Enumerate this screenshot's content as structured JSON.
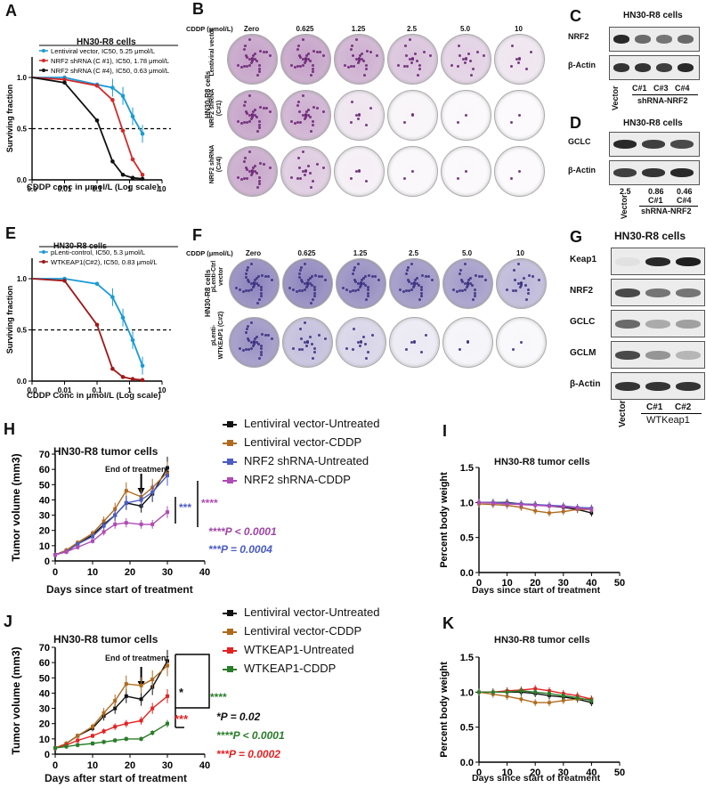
{
  "panels": {
    "A": {
      "label": "A",
      "legend_title": "HN30-R8 cells",
      "xlabel": "CDDP conc in μmol/L (Log scale)",
      "ylabel": "Surviving fraction",
      "series": [
        {
          "name": "Lentiviral vector, IC50, 5.25 μmol/L",
          "color": "#1a9bd7",
          "ic50": 5.25
        },
        {
          "name": "NRF2 shRNA (C #1), IC50, 1.78 μmol/L",
          "color": "#d42a2a",
          "ic50": 1.78
        },
        {
          "name": "NRF2 shRNA (C #4), IC50, 0.63 μmol/L",
          "color": "#111111",
          "ic50": 0.63
        }
      ],
      "xticks": [
        "0.0",
        "0.01",
        "0.1",
        "1",
        "10"
      ],
      "yticks": [
        "0.0",
        "0.5",
        "1.0"
      ]
    },
    "B": {
      "label": "B",
      "conc_title": "CDDP (μmol/L)",
      "conc": [
        "Zero",
        "0.625",
        "1.25",
        "2.5",
        "5.0",
        "10"
      ],
      "side": "HN30-R8 cells",
      "rows": [
        "Lentiviral vector",
        "NRF2 shRNA (C#1)",
        "NRF2 shRNA (C#4)"
      ]
    },
    "C": {
      "label": "C",
      "title": "HN30-R8 cells",
      "proteins": [
        "NRF2",
        "β-Actin"
      ],
      "lanes": [
        "Vector",
        "C#1",
        "C#3",
        "C#4"
      ],
      "group": "shRNA-NRF2"
    },
    "D": {
      "label": "D",
      "title": "HN30-R8 cells",
      "proteins": [
        "GCLC",
        "β-Actin"
      ],
      "values": [
        "2.5",
        "0.86",
        "0.46"
      ],
      "lanes": [
        "Vector",
        "C#1",
        "C#4"
      ],
      "group": "shRNA-NRF2"
    },
    "E": {
      "label": "E",
      "legend_title": "HN30-R8 cells",
      "xlabel": "CDDP Conc in μmol/L (Log scale)",
      "ylabel": "Surviving fraction",
      "series": [
        {
          "name": "pLenti-control, IC50, 5.3 μmol/L",
          "color": "#1a9bd7",
          "ic50": 5.3
        },
        {
          "name": "WTKEAP1(C#2), IC50, 0.83 μmol/L",
          "color": "#a01818",
          "ic50": 0.83
        }
      ],
      "xticks": [
        "0.0",
        "0.01",
        "0.1",
        "1",
        "10"
      ],
      "yticks": [
        "0.0",
        "0.5",
        "1.0"
      ]
    },
    "F": {
      "label": "F",
      "conc_title": "CDDP (μmol/L)",
      "conc": [
        "Zero",
        "0.625",
        "1.25",
        "2.5",
        "5.0",
        "10"
      ],
      "side": "HN30-R8 cells",
      "rows": [
        "pLenti-Ctrl vector",
        "pLenti-WTKEAP1 (C#2)"
      ]
    },
    "G": {
      "label": "G",
      "title": "HN30-R8 cells",
      "proteins": [
        "Keap1",
        "NRF2",
        "GCLC",
        "GCLM",
        "β-Actin"
      ],
      "lanes": [
        "Vector",
        "C#1",
        "C#2"
      ],
      "group": "WTKeap1"
    },
    "H": {
      "label": "H",
      "title": "HN30-R8 tumor cells",
      "annotation": "End of treatment",
      "xlabel": "Days since start of treatment",
      "ylabel": "Tumor volume (mm3)",
      "legend": [
        "Lentiviral vector-Untreated",
        "Lentiviral vector-CDDP",
        "NRF2 shRNA-Untreated",
        "NRF2 shRNA-CDDP"
      ],
      "sig1": "***",
      "sig2": "****",
      "p1": "****P < 0.0001",
      "p2": "***P = 0.0004"
    },
    "I": {
      "label": "I",
      "title": "HN30-R8 tumor cells",
      "xlabel": "Days since start of treatment",
      "ylabel": "Percent body weight"
    },
    "J": {
      "label": "J",
      "title": "HN30-R8 tumor cells",
      "annotation": "End of treatment",
      "xlabel": "Days after start of treatment",
      "ylabel": "Tumor volume (mm3)",
      "legend": [
        "Lentiviral vector-Untreated",
        "Lentiviral vector-CDDP",
        "WTKEAP1-Untreated",
        "WTKEAP1-CDDP"
      ],
      "sig1": "*",
      "sig2": "****",
      "sig3": "***",
      "p1": "*P = 0.02",
      "p2": "****P < 0.0001",
      "p3": "***P = 0.0002"
    },
    "K": {
      "label": "K",
      "title": "HN30-R8 tumor cells",
      "xlabel": "Days since start of treatment",
      "ylabel": "Percent body weight"
    }
  },
  "chart_data": [
    {
      "panel": "A",
      "type": "line",
      "title": "HN30-R8 cells",
      "xlabel": "CDDP conc in μmol/L (Log scale)",
      "ylabel": "Surviving fraction",
      "xscale": "log",
      "ylim": [
        0,
        1.2
      ],
      "x": [
        0.001,
        0.01,
        0.1,
        0.3,
        0.625,
        1.25,
        2.5
      ],
      "series": [
        {
          "name": "Lentiviral vector, IC50, 5.25 μmol/L",
          "values": [
            1.0,
            1.0,
            0.93,
            0.9,
            0.82,
            0.62,
            0.45
          ]
        },
        {
          "name": "NRF2 shRNA (C #1), IC50, 1.78 μmol/L",
          "values": [
            1.0,
            0.98,
            0.92,
            0.78,
            0.48,
            0.2,
            0.05
          ]
        },
        {
          "name": "NRF2 shRNA (C #4), IC50, 0.63 μmol/L",
          "values": [
            1.0,
            0.95,
            0.58,
            0.18,
            0.05,
            0.02,
            0.01
          ]
        }
      ]
    },
    {
      "panel": "E",
      "type": "line",
      "title": "HN30-R8 cells",
      "xlabel": "CDDP Conc in μmol/L (Log scale)",
      "ylabel": "Surviving fraction",
      "xscale": "log",
      "ylim": [
        0,
        1.2
      ],
      "x": [
        0.001,
        0.01,
        0.1,
        0.3,
        0.625,
        1.25,
        2.5
      ],
      "series": [
        {
          "name": "pLenti-control, IC50, 5.3 μmol/L",
          "values": [
            1.0,
            1.0,
            0.95,
            0.82,
            0.62,
            0.4,
            0.15
          ]
        },
        {
          "name": "WTKEAP1(C#2), IC50, 0.83 μmol/L",
          "values": [
            1.0,
            0.98,
            0.55,
            0.12,
            0.04,
            0.02,
            0.01
          ]
        }
      ]
    },
    {
      "panel": "H",
      "type": "line",
      "title": "HN30-R8 tumor cells",
      "xlabel": "Days since start of treatment",
      "ylabel": "Tumor volume (mm3)",
      "xlim": [
        0,
        40
      ],
      "ylim": [
        0,
        70
      ],
      "x": [
        0,
        3,
        6,
        10,
        13,
        16,
        19,
        23,
        26,
        30
      ],
      "series": [
        {
          "name": "Lentiviral vector-Untreated",
          "values": [
            4,
            7,
            11,
            17,
            24,
            30,
            38,
            36,
            44,
            61
          ]
        },
        {
          "name": "Lentiviral vector-CDDP",
          "values": [
            4,
            7,
            12,
            18,
            26,
            34,
            46,
            42,
            48,
            58
          ]
        },
        {
          "name": "NRF2 shRNA-Untreated",
          "values": [
            4,
            6,
            11,
            16,
            23,
            30,
            38,
            40,
            45,
            56
          ]
        },
        {
          "name": "NRF2 shRNA-CDDP",
          "values": [
            4,
            6,
            9,
            13,
            19,
            24,
            25,
            24,
            24,
            32
          ]
        }
      ]
    },
    {
      "panel": "I",
      "type": "line",
      "title": "HN30-R8 tumor cells",
      "xlabel": "Days since start of treatment",
      "ylabel": "Percent body weight",
      "xlim": [
        0,
        50
      ],
      "ylim": [
        0,
        1.5
      ],
      "x": [
        0,
        5,
        10,
        15,
        20,
        25,
        30,
        35,
        40
      ],
      "series": [
        {
          "name": "Lentiviral vector-Untreated",
          "values": [
            1.0,
            1.0,
            1.0,
            0.98,
            0.97,
            0.95,
            0.93,
            0.9,
            0.85
          ]
        },
        {
          "name": "Lentiviral vector-CDDP",
          "values": [
            0.98,
            0.97,
            0.96,
            0.93,
            0.88,
            0.85,
            0.87,
            0.9,
            0.9
          ]
        },
        {
          "name": "NRF2 shRNA-Untreated",
          "values": [
            1.0,
            1.0,
            0.99,
            0.98,
            0.97,
            0.96,
            0.95,
            0.93,
            0.92
          ]
        },
        {
          "name": "NRF2 shRNA-CDDP",
          "values": [
            1.0,
            0.99,
            0.98,
            0.97,
            0.96,
            0.95,
            0.94,
            0.92,
            0.9
          ]
        }
      ]
    },
    {
      "panel": "J",
      "type": "line",
      "title": "HN30-R8 tumor cells",
      "xlabel": "Days after start of treatment",
      "ylabel": "Tumor volume (mm3)",
      "xlim": [
        0,
        40
      ],
      "ylim": [
        0,
        70
      ],
      "x": [
        0,
        3,
        6,
        10,
        13,
        16,
        19,
        23,
        26,
        30
      ],
      "series": [
        {
          "name": "Lentiviral vector-Untreated",
          "values": [
            4,
            7,
            12,
            17,
            25,
            30,
            38,
            36,
            44,
            61
          ]
        },
        {
          "name": "Lentiviral vector-CDDP",
          "values": [
            4,
            7,
            12,
            18,
            27,
            35,
            46,
            45,
            49,
            58
          ]
        },
        {
          "name": "WTKEAP1-Untreated",
          "values": [
            4,
            6,
            9,
            12,
            15,
            18,
            20,
            22,
            30,
            38
          ]
        },
        {
          "name": "WTKEAP1-CDDP",
          "values": [
            4,
            5,
            6,
            7,
            8,
            9,
            10,
            10,
            14,
            20
          ]
        }
      ]
    },
    {
      "panel": "K",
      "type": "line",
      "title": "HN30-R8 tumor cells",
      "xlabel": "Days since start of treatment",
      "ylabel": "Percent body weight",
      "xlim": [
        0,
        50
      ],
      "ylim": [
        0,
        1.5
      ],
      "x": [
        0,
        5,
        10,
        15,
        20,
        25,
        30,
        35,
        40
      ],
      "series": [
        {
          "name": "Lentiviral vector-Untreated",
          "values": [
            1.0,
            1.0,
            1.0,
            1.0,
            0.98,
            0.95,
            0.93,
            0.9,
            0.85
          ]
        },
        {
          "name": "Lentiviral vector-CDDP",
          "values": [
            1.0,
            0.97,
            0.94,
            0.9,
            0.85,
            0.85,
            0.88,
            0.9,
            0.9
          ]
        },
        {
          "name": "WTKEAP1-Untreated",
          "values": [
            1.0,
            1.0,
            1.02,
            1.03,
            1.05,
            1.02,
            0.98,
            0.95,
            0.9
          ]
        },
        {
          "name": "WTKEAP1-CDDP",
          "values": [
            1.0,
            1.0,
            1.0,
            1.02,
            1.0,
            0.98,
            0.95,
            0.92,
            0.88
          ]
        }
      ]
    }
  ]
}
